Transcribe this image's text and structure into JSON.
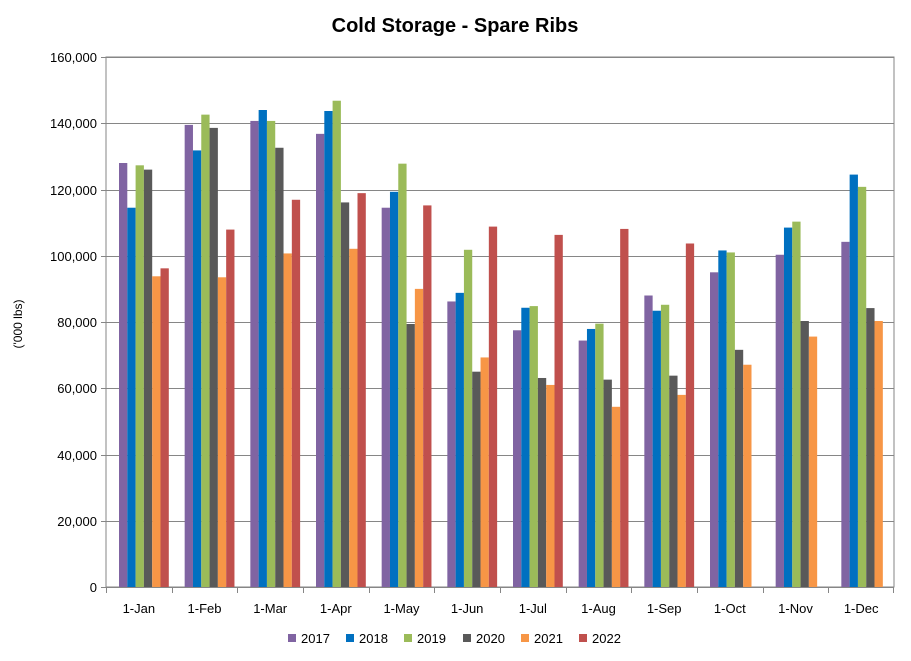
{
  "chart_data": {
    "type": "bar",
    "title": "Cold Storage - Spare Ribs",
    "xlabel": "",
    "ylabel": "('000 lbs)",
    "ylim": [
      0,
      160000
    ],
    "yticks": [
      0,
      20000,
      40000,
      60000,
      80000,
      100000,
      120000,
      140000,
      160000
    ],
    "ytick_labels": [
      "0",
      "20,000",
      "40,000",
      "60,000",
      "80,000",
      "100,000",
      "120,000",
      "140,000",
      "160,000"
    ],
    "grid": true,
    "legend_position": "bottom",
    "categories": [
      "1-Jan",
      "1-Feb",
      "1-Mar",
      "1-Apr",
      "1-May",
      "1-Jun",
      "1-Jul",
      "1-Aug",
      "1-Sep",
      "1-Oct",
      "1-Nov",
      "1-Dec"
    ],
    "series": [
      {
        "name": "2017",
        "color": "#8064a2",
        "values": [
          128000,
          139500,
          140700,
          136800,
          114500,
          86200,
          77500,
          74400,
          88000,
          95000,
          100300,
          104200
        ]
      },
      {
        "name": "2018",
        "color": "#0070c0",
        "values": [
          114500,
          131800,
          144000,
          143700,
          119300,
          88800,
          84300,
          77900,
          83400,
          101600,
          108500,
          124500
        ]
      },
      {
        "name": "2019",
        "color": "#9bbb59",
        "values": [
          127300,
          142600,
          140700,
          146800,
          127800,
          101800,
          84800,
          79500,
          85200,
          101000,
          110300,
          120800
        ]
      },
      {
        "name": "2020",
        "color": "#595959",
        "values": [
          126000,
          138600,
          132600,
          116100,
          79400,
          65000,
          63100,
          62600,
          63800,
          71600,
          80300,
          84200
        ]
      },
      {
        "name": "2021",
        "color": "#f79646",
        "values": [
          93800,
          93500,
          100700,
          102100,
          90000,
          69300,
          61000,
          54400,
          58000,
          67100,
          75600,
          80300
        ]
      },
      {
        "name": "2022",
        "color": "#c0504d",
        "values": [
          96200,
          107900,
          116900,
          118900,
          115200,
          108800,
          106300,
          108100,
          103700,
          null,
          null,
          null
        ]
      }
    ]
  }
}
